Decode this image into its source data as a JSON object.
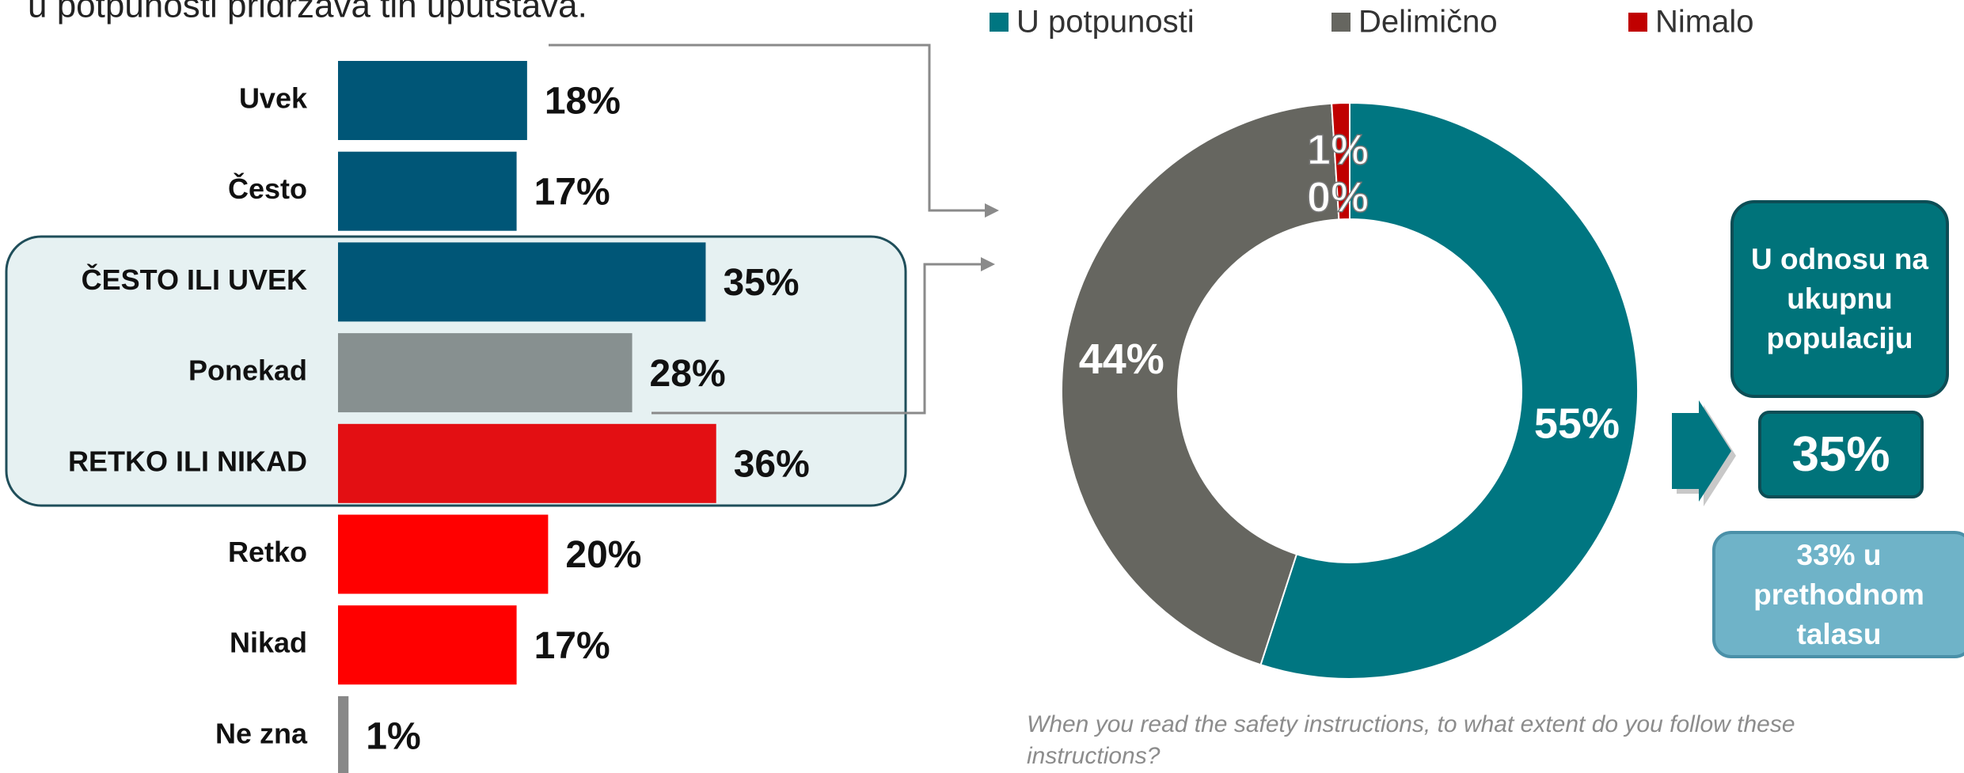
{
  "chart_data": [
    {
      "type": "bar",
      "orientation": "horizontal",
      "title": "u potpunosti pridržava tih uputstava.",
      "categories": [
        "Uvek",
        "Često",
        "ČESTO ILI UVEK",
        "Ponekad",
        "RETKO ILI NIKAD",
        "Retko",
        "Nikad",
        "Ne zna"
      ],
      "values": [
        18,
        17,
        35,
        28,
        36,
        20,
        17,
        1
      ],
      "value_labels": [
        "18%",
        "17%",
        "35%",
        "28%",
        "36%",
        "20%",
        "17%",
        "1%"
      ],
      "colors": [
        "#005677",
        "#005677",
        "#005677",
        "#879090",
        "#e30f13",
        "#ff0000",
        "#ff0000",
        "#888888"
      ],
      "xlim": [
        0,
        100
      ]
    },
    {
      "type": "pie",
      "donut": true,
      "categories": [
        "U potpunosti",
        "Delimično",
        "Nimalo",
        null
      ],
      "values": [
        55,
        44,
        1,
        0
      ],
      "value_labels": [
        "55%",
        "44%",
        "1%",
        "0%"
      ],
      "colors": [
        "#007681",
        "#666660",
        "#c00000",
        "#999999"
      ],
      "legend": "top",
      "note": "When you read the safety instructions, to what extent do you follow these instructions?",
      "callouts": [
        "U odnosu na ukupnu populaciju",
        "35%",
        "33% u prethodnom talasu"
      ]
    }
  ]
}
